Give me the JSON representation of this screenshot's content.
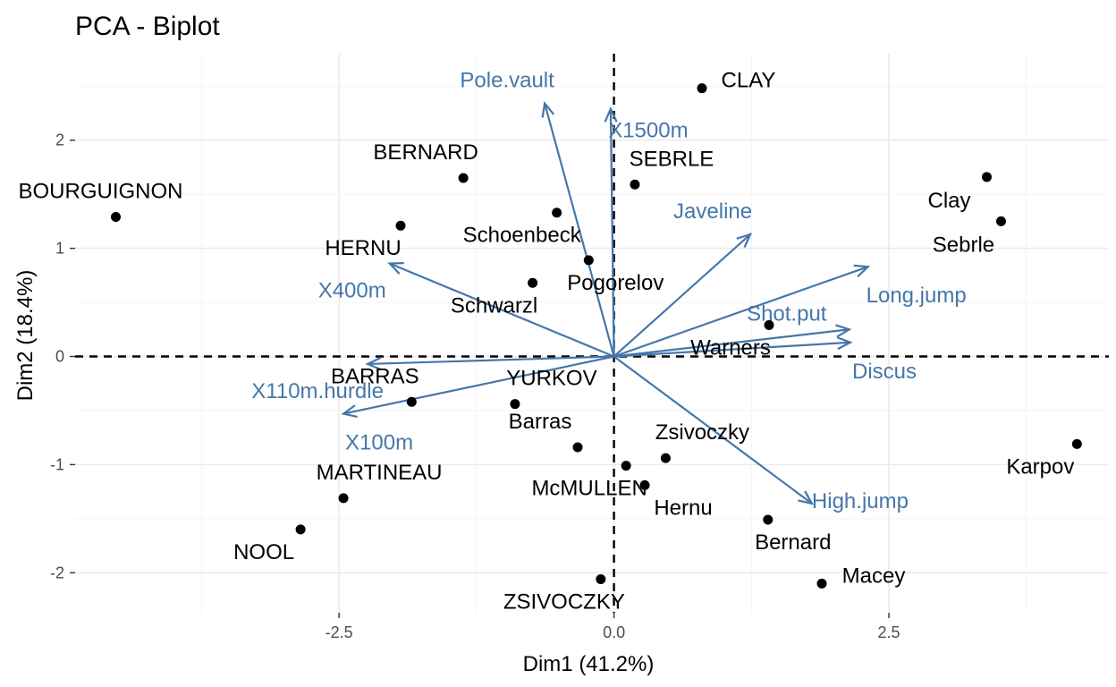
{
  "chart_data": {
    "type": "scatter",
    "title": "PCA - Biplot",
    "xlabel": "Dim1 (41.2%)",
    "ylabel": "Dim2 (18.4%)",
    "xlim": [
      -4.9,
      4.5
    ],
    "ylim": [
      -2.37,
      2.8
    ],
    "x_ticks": [
      -2.5,
      0,
      2.5
    ],
    "x_tick_labels": [
      "-2.5",
      "0.0",
      "2.5"
    ],
    "y_ticks": [
      -2,
      -1,
      0,
      1,
      2
    ],
    "y_tick_labels": [
      "-2",
      "-1",
      "0",
      "1",
      "2"
    ],
    "grid": true,
    "colors": {
      "individuals": "#000000",
      "variables": "#4477aa",
      "grid": "#ebebeb"
    },
    "individuals": [
      {
        "name": "CLAY",
        "x": 0.8,
        "y": 2.48
      },
      {
        "name": "BERNARD",
        "x": -1.37,
        "y": 1.65
      },
      {
        "name": "SEBRLE",
        "x": 0.19,
        "y": 1.59
      },
      {
        "name": "BOURGUIGNON",
        "x": -4.53,
        "y": 1.29
      },
      {
        "name": "Clay",
        "x": 3.39,
        "y": 1.66
      },
      {
        "name": "Sebrle",
        "x": 3.52,
        "y": 1.25
      },
      {
        "name": "HERNU",
        "x": -1.94,
        "y": 1.21
      },
      {
        "name": "Schoenbeck",
        "x": -0.52,
        "y": 1.33
      },
      {
        "name": "Pogorelov",
        "x": -0.23,
        "y": 0.89
      },
      {
        "name": "Schwarzl",
        "x": -0.74,
        "y": 0.68
      },
      {
        "name": "Warners",
        "x": 1.41,
        "y": 0.29
      },
      {
        "name": "BARRAS",
        "x": -1.84,
        "y": -0.42
      },
      {
        "name": "YURKOV",
        "x": -0.9,
        "y": -0.44
      },
      {
        "name": "Barras",
        "x": -0.33,
        "y": -0.84
      },
      {
        "name": "Zsivoczky",
        "x": 0.47,
        "y": -0.94
      },
      {
        "name": "McMULLEN",
        "x": 0.11,
        "y": -1.01
      },
      {
        "name": "Hernu",
        "x": 0.28,
        "y": -1.19
      },
      {
        "name": "Karpov",
        "x": 4.21,
        "y": -0.81
      },
      {
        "name": "MARTINEAU",
        "x": -2.46,
        "y": -1.31
      },
      {
        "name": "NOOL",
        "x": -2.85,
        "y": -1.6
      },
      {
        "name": "Bernard",
        "x": 1.4,
        "y": -1.51
      },
      {
        "name": "Macey",
        "x": 1.89,
        "y": -2.1
      },
      {
        "name": "ZSIVOCZKY",
        "x": -0.12,
        "y": -2.06
      }
    ],
    "variables": [
      {
        "name": "Pole.vault",
        "x": -0.63,
        "y": 2.34
      },
      {
        "name": "X1500m",
        "x": -0.03,
        "y": 2.29
      },
      {
        "name": "Javeline",
        "x": 1.24,
        "y": 1.13
      },
      {
        "name": "Long.jump",
        "x": 2.31,
        "y": 0.83
      },
      {
        "name": "Shot.put",
        "x": 2.14,
        "y": 0.25
      },
      {
        "name": "Discus",
        "x": 2.15,
        "y": 0.13
      },
      {
        "name": "High.jump",
        "x": 1.8,
        "y": -1.36
      },
      {
        "name": "X400m",
        "x": -2.04,
        "y": 0.86
      },
      {
        "name": "X110m.hurdle",
        "x": -2.24,
        "y": -0.07
      },
      {
        "name": "X100m",
        "x": -2.46,
        "y": -0.53
      }
    ]
  }
}
